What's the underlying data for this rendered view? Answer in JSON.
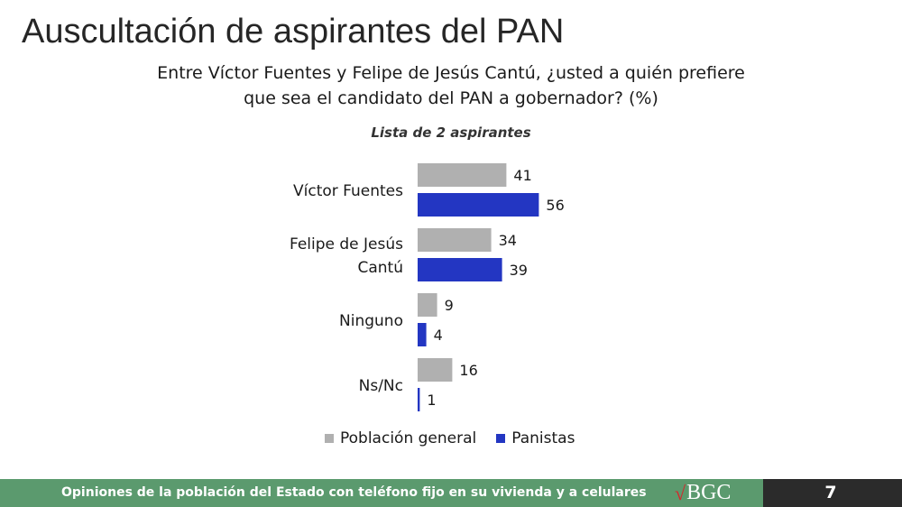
{
  "title": "Auscultación de aspirantes del PAN",
  "question_line1": "Entre Víctor Fuentes y Felipe de Jesús Cantú, ¿usted a quién prefiere",
  "question_line2": "que sea el candidato del PAN a gobernador? (%)",
  "subtitle": "Lista de 2 aspirantes",
  "chart_data": {
    "type": "bar",
    "orientation": "horizontal",
    "categories": [
      [
        "Víctor Fuentes"
      ],
      [
        "Felipe de Jesús",
        "Cantú"
      ],
      [
        "Ninguno"
      ],
      [
        "Ns/Nc"
      ]
    ],
    "series": [
      {
        "name": "Población general",
        "color": "#b0b0b0",
        "values": [
          41,
          34,
          9,
          16
        ]
      },
      {
        "name": "Panistas",
        "color": "#2336c2",
        "values": [
          56,
          39,
          4,
          1
        ]
      }
    ],
    "xlim": [
      0,
      60
    ],
    "grid": false,
    "legend": "bottom"
  },
  "footer": {
    "text": "Opiniones de la población del Estado con teléfono fijo en su vivienda y a celulares",
    "logo_mark": "√",
    "logo_text": "BGC",
    "page_number": "7",
    "color": "#5b9a6e"
  }
}
